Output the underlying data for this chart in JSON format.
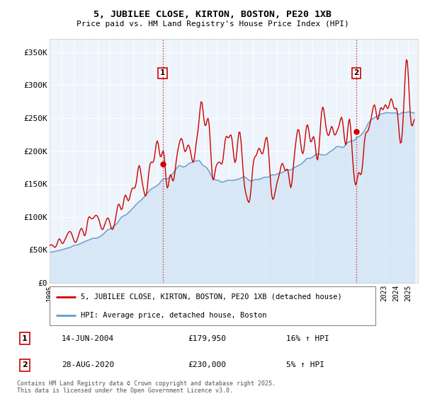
{
  "title": "5, JUBILEE CLOSE, KIRTON, BOSTON, PE20 1XB",
  "subtitle": "Price paid vs. HM Land Registry's House Price Index (HPI)",
  "ylabel_values": [
    "£0",
    "£50K",
    "£100K",
    "£150K",
    "£200K",
    "£250K",
    "£300K",
    "£350K"
  ],
  "ytick_values": [
    0,
    50000,
    100000,
    150000,
    200000,
    250000,
    300000,
    350000
  ],
  "ylim": [
    0,
    370000
  ],
  "xlim_start": 1995.0,
  "xlim_end": 2025.8,
  "color_red": "#cc0000",
  "color_blue": "#6699cc",
  "color_blue_fill": "#ddeeff",
  "color_bg": "#eef4fb",
  "transaction1_price_val": 179950,
  "transaction1_date": "14-JUN-2004",
  "transaction1_price": "£179,950",
  "transaction1_hpi": "16% ↑ HPI",
  "transaction1_year": 2004.45,
  "transaction2_price_val": 230000,
  "transaction2_date": "28-AUG-2020",
  "transaction2_price": "£230,000",
  "transaction2_hpi": "5% ↑ HPI",
  "transaction2_year": 2020.65,
  "legend_label_red": "5, JUBILEE CLOSE, KIRTON, BOSTON, PE20 1XB (detached house)",
  "legend_label_blue": "HPI: Average price, detached house, Boston",
  "footer_text": "Contains HM Land Registry data © Crown copyright and database right 2025.\nThis data is licensed under the Open Government Licence v3.0.",
  "xtick_years": [
    1995,
    1996,
    1997,
    1998,
    1999,
    2000,
    2001,
    2002,
    2003,
    2004,
    2005,
    2006,
    2007,
    2008,
    2009,
    2010,
    2011,
    2012,
    2013,
    2014,
    2015,
    2016,
    2017,
    2018,
    2019,
    2020,
    2021,
    2022,
    2023,
    2024,
    2025
  ]
}
